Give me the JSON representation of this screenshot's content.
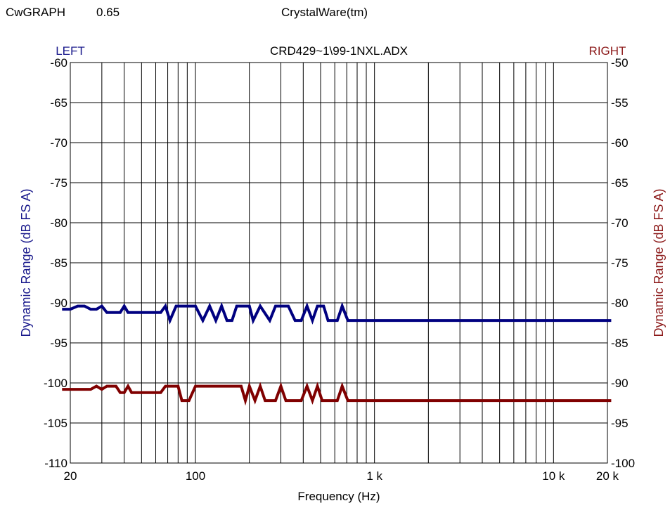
{
  "header": {
    "app_name": "CwGRAPH",
    "app_version": "0.65",
    "brand": "CrystalWare(tm)"
  },
  "chart_data": {
    "type": "line",
    "title": "CRD429~1\\99-1NXL.ADX",
    "xlabel": "Frequency (Hz)",
    "x_scale": "log",
    "xlim": [
      20,
      20000
    ],
    "x_tick_labels": [
      {
        "value": 20,
        "label": "20"
      },
      {
        "value": 100,
        "label": "100"
      },
      {
        "value": 1000,
        "label": "1 k"
      },
      {
        "value": 10000,
        "label": "10 k"
      },
      {
        "value": 20000,
        "label": "20 k"
      }
    ],
    "grid": true,
    "left_axis": {
      "title": "LEFT",
      "label": "Dynamic Range (dB FS A)",
      "ylim": [
        -110,
        -60
      ],
      "ticks": [
        -60,
        -65,
        -70,
        -75,
        -80,
        -85,
        -90,
        -95,
        -100,
        -105,
        -110
      ],
      "color": "#1a1a8c"
    },
    "right_axis": {
      "title": "RIGHT",
      "label": "Dynamic Range (dB FS A)",
      "ylim": [
        -100,
        -50
      ],
      "ticks": [
        -50,
        -55,
        -60,
        -65,
        -70,
        -75,
        -80,
        -85,
        -90,
        -95,
        -100
      ],
      "color": "#8c1a1a"
    },
    "series": [
      {
        "name": "LEFT",
        "axis": "left",
        "color": "#000080",
        "points": [
          [
            18,
            -90.8
          ],
          [
            20,
            -90.8
          ],
          [
            22,
            -90.4
          ],
          [
            24,
            -90.4
          ],
          [
            26,
            -90.8
          ],
          [
            28,
            -90.8
          ],
          [
            30,
            -90.4
          ],
          [
            32,
            -91.2
          ],
          [
            36,
            -91.2
          ],
          [
            38,
            -91.2
          ],
          [
            40,
            -90.4
          ],
          [
            42,
            -91.2
          ],
          [
            50,
            -91.2
          ],
          [
            60,
            -91.2
          ],
          [
            64,
            -91.2
          ],
          [
            68,
            -90.4
          ],
          [
            72,
            -92.2
          ],
          [
            78,
            -90.4
          ],
          [
            90,
            -90.4
          ],
          [
            100,
            -90.4
          ],
          [
            110,
            -92.2
          ],
          [
            120,
            -90.4
          ],
          [
            130,
            -92.2
          ],
          [
            140,
            -90.4
          ],
          [
            150,
            -92.2
          ],
          [
            160,
            -92.2
          ],
          [
            170,
            -90.4
          ],
          [
            200,
            -90.4
          ],
          [
            210,
            -92.2
          ],
          [
            230,
            -90.4
          ],
          [
            260,
            -92.2
          ],
          [
            280,
            -90.4
          ],
          [
            330,
            -90.4
          ],
          [
            360,
            -92.2
          ],
          [
            390,
            -92.2
          ],
          [
            420,
            -90.4
          ],
          [
            450,
            -92.2
          ],
          [
            480,
            -90.4
          ],
          [
            520,
            -90.4
          ],
          [
            550,
            -92.2
          ],
          [
            620,
            -92.2
          ],
          [
            660,
            -90.4
          ],
          [
            710,
            -92.2
          ],
          [
            20000,
            -92.2
          ],
          [
            21000,
            -92.2
          ]
        ]
      },
      {
        "name": "RIGHT",
        "axis": "right",
        "color": "#800000",
        "points": [
          [
            18,
            -90.8
          ],
          [
            20,
            -90.8
          ],
          [
            26,
            -90.8
          ],
          [
            28,
            -90.4
          ],
          [
            30,
            -90.8
          ],
          [
            32,
            -90.4
          ],
          [
            36,
            -90.4
          ],
          [
            38,
            -91.2
          ],
          [
            40,
            -91.2
          ],
          [
            42,
            -90.4
          ],
          [
            44,
            -91.2
          ],
          [
            50,
            -91.2
          ],
          [
            60,
            -91.2
          ],
          [
            64,
            -91.2
          ],
          [
            68,
            -90.4
          ],
          [
            80,
            -90.4
          ],
          [
            84,
            -92.2
          ],
          [
            92,
            -92.2
          ],
          [
            100,
            -90.4
          ],
          [
            180,
            -90.4
          ],
          [
            190,
            -92.2
          ],
          [
            200,
            -90.4
          ],
          [
            215,
            -92.2
          ],
          [
            230,
            -90.4
          ],
          [
            245,
            -92.2
          ],
          [
            280,
            -92.2
          ],
          [
            300,
            -90.4
          ],
          [
            320,
            -92.2
          ],
          [
            390,
            -92.2
          ],
          [
            420,
            -90.4
          ],
          [
            450,
            -92.2
          ],
          [
            480,
            -90.4
          ],
          [
            510,
            -92.2
          ],
          [
            620,
            -92.2
          ],
          [
            660,
            -90.4
          ],
          [
            710,
            -92.2
          ],
          [
            20000,
            -92.2
          ],
          [
            21000,
            -92.2
          ]
        ]
      }
    ]
  }
}
